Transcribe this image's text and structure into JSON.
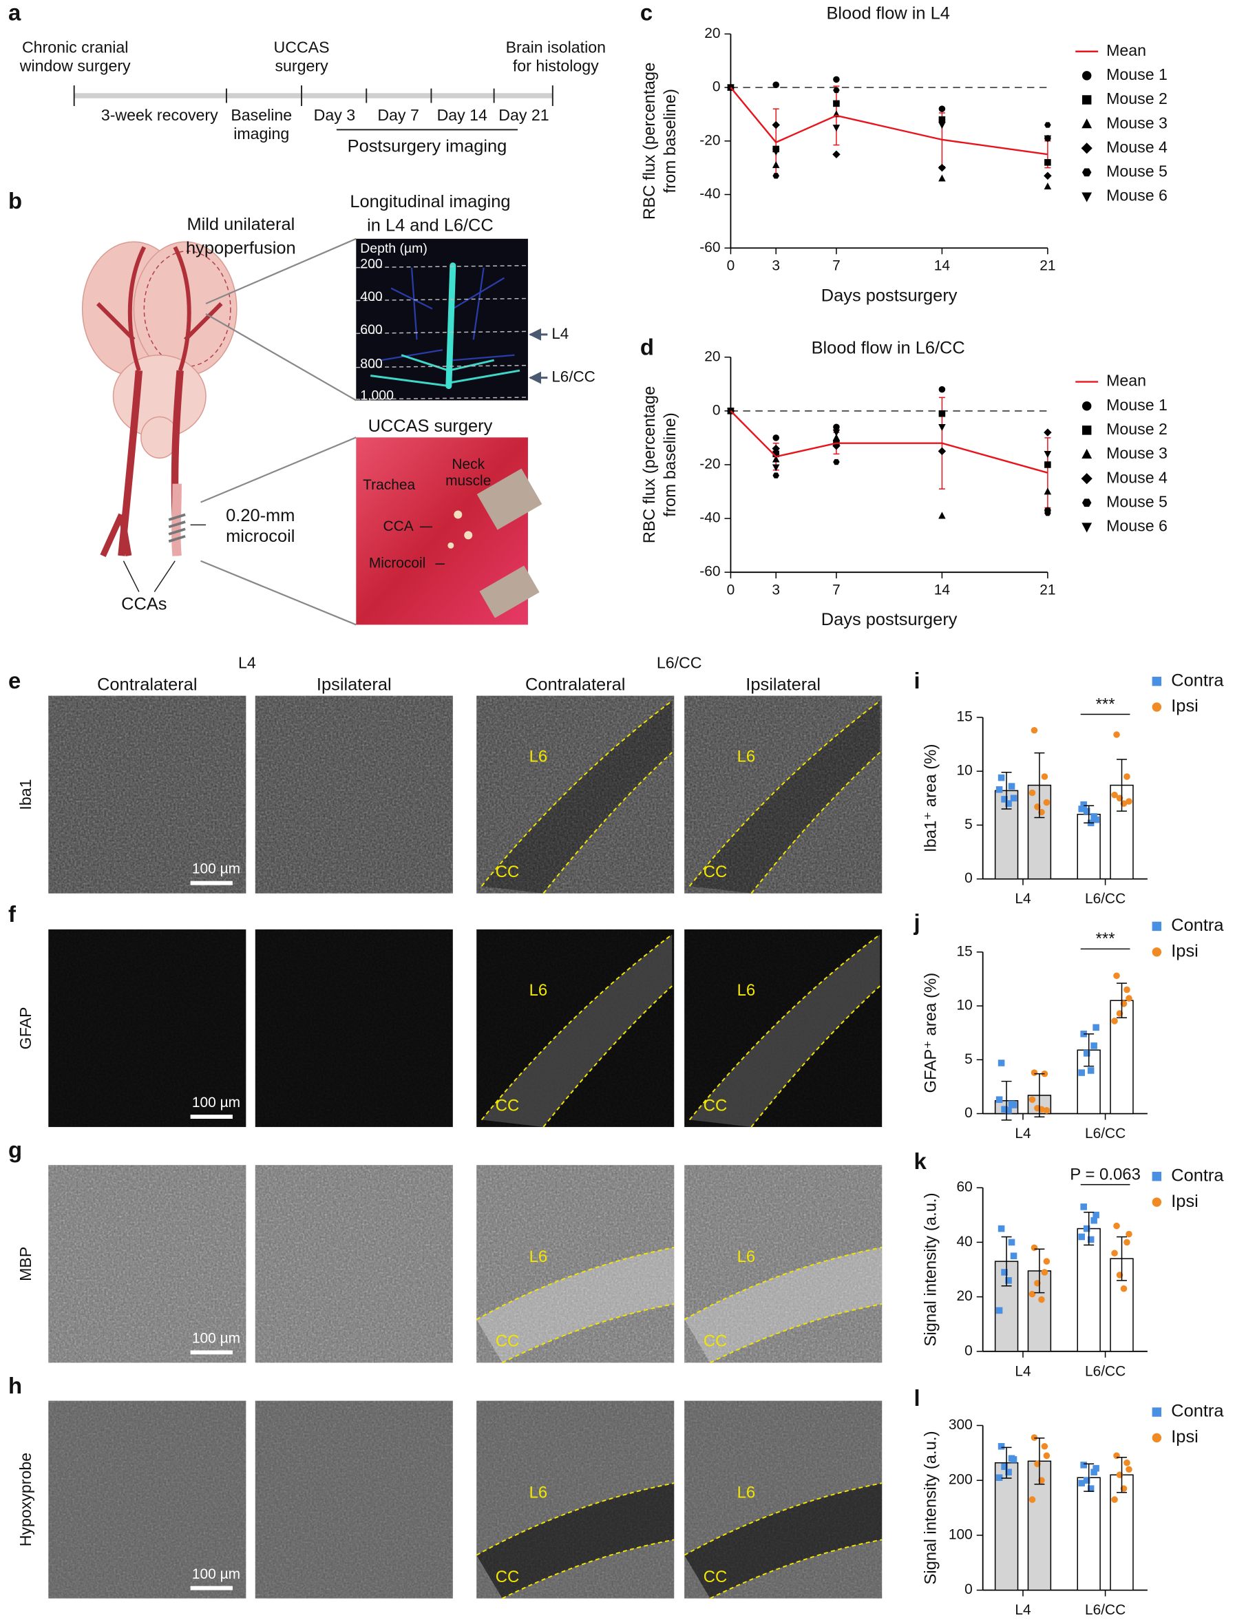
{
  "timeline": {
    "letter": "a",
    "events": [
      {
        "lines": [
          "Chronic cranial",
          "window surgery"
        ]
      },
      {
        "lines": [
          "UCCAS",
          "surgery"
        ]
      },
      {
        "lines": [
          "Brain isolation",
          "for histology"
        ]
      }
    ],
    "periods": [
      [
        "3-week recovery"
      ],
      [
        "Baseline",
        "imaging"
      ],
      [
        "Day 3"
      ],
      [
        "Day 7"
      ],
      [
        "Day 14"
      ],
      [
        "Day 21"
      ]
    ],
    "span": "Postsurgery imaging"
  },
  "model": {
    "letter": "b",
    "hypoperfusion": [
      "Mild unilateral",
      "hypoperfusion"
    ],
    "imaging_title": [
      "Longitudinal imaging",
      "in L4 and L6/CC"
    ],
    "depth_label": "Depth (µm)",
    "depths": [
      "200",
      "400",
      "600",
      "800",
      "1,000"
    ],
    "layers": [
      "L4",
      "L6/CC"
    ],
    "surgery_title": "UCCAS surgery",
    "photo_labels": [
      "Trachea",
      "Neck",
      "muscle",
      "CCA",
      "Microcoil"
    ],
    "microcoil": [
      "0.20-mm",
      "microcoil"
    ],
    "vessels": "CCAs"
  },
  "chart_data": [
    {
      "type": "line",
      "panel": "c",
      "title": "Blood flow in L4",
      "xlabel": "Days postsurgery",
      "ylabel": [
        "RBC flux (percentage",
        "from baseline)"
      ],
      "x": [
        0,
        3,
        7,
        14,
        21
      ],
      "xlim": [
        0,
        21
      ],
      "xticks": [
        0,
        3,
        7,
        14,
        21
      ],
      "ylim": [
        -60,
        20
      ],
      "yticks": [
        -60,
        -40,
        -20,
        0,
        20
      ],
      "hline": 0,
      "series": [
        {
          "name": "Mean",
          "color": "#e8141c",
          "values": [
            0,
            -20.5,
            -10.5,
            -19.5,
            -25
          ],
          "errors": [
            0,
            12.5,
            11,
            10,
            5
          ]
        },
        {
          "name": "Mouse 1",
          "color": "#000000",
          "marker": "circle",
          "values": [
            0,
            1,
            3,
            -8,
            -19
          ]
        },
        {
          "name": "Mouse 2",
          "color": "#000000",
          "marker": "square",
          "values": [
            0,
            -23,
            -6,
            -12,
            -28
          ]
        },
        {
          "name": "Mouse 3",
          "color": "#000000",
          "marker": "triangle",
          "values": [
            0,
            -29,
            -10,
            -34,
            -37
          ]
        },
        {
          "name": "Mouse 4",
          "color": "#000000",
          "marker": "diamond",
          "values": [
            0,
            -14,
            -25,
            -30,
            -33
          ]
        },
        {
          "name": "Mouse 5",
          "color": "#000000",
          "marker": "hexagon",
          "values": [
            0,
            -33,
            -1,
            -12,
            -14
          ]
        },
        {
          "name": "Mouse 6",
          "color": "#000000",
          "marker": "triangle-down",
          "values": [
            0,
            -24,
            -15,
            -14,
            -19
          ]
        }
      ]
    },
    {
      "type": "line",
      "panel": "d",
      "title": "Blood flow in L6/CC",
      "xlabel": "Days postsurgery",
      "ylabel": [
        "RBC flux (percentage",
        "from baseline)"
      ],
      "x": [
        0,
        3,
        7,
        14,
        21
      ],
      "xlim": [
        0,
        21
      ],
      "xticks": [
        0,
        3,
        7,
        14,
        21
      ],
      "ylim": [
        -60,
        20
      ],
      "yticks": [
        -60,
        -40,
        -20,
        0,
        20
      ],
      "hline": 0,
      "series": [
        {
          "name": "Mean",
          "color": "#e8141c",
          "values": [
            0,
            -17,
            -12,
            -12,
            -23
          ],
          "errors": [
            0,
            5,
            4,
            17,
            13
          ]
        },
        {
          "name": "Mouse 1",
          "color": "#000000",
          "marker": "circle",
          "values": [
            0,
            -10,
            -6,
            8,
            -37
          ]
        },
        {
          "name": "Mouse 2",
          "color": "#000000",
          "marker": "square",
          "values": [
            0,
            -16,
            -12,
            -1,
            -20
          ]
        },
        {
          "name": "Mouse 3",
          "color": "#000000",
          "marker": "triangle",
          "values": [
            0,
            -18,
            -10,
            -39,
            -30
          ]
        },
        {
          "name": "Mouse 4",
          "color": "#000000",
          "marker": "diamond",
          "values": [
            0,
            -14,
            -13,
            -15,
            -8
          ]
        },
        {
          "name": "Mouse 5",
          "color": "#000000",
          "marker": "hexagon",
          "values": [
            0,
            -24,
            -19,
            -1,
            -38
          ]
        },
        {
          "name": "Mouse 6",
          "color": "#000000",
          "marker": "triangle-down",
          "values": [
            0,
            -21,
            -8,
            -6,
            -16
          ]
        }
      ]
    },
    {
      "type": "bar",
      "panel": "i",
      "ylabel": "Iba1⁺ area (%)",
      "categories": [
        "L4",
        "L6/CC"
      ],
      "category_fills": [
        "#d4d4d4",
        "#ffffff"
      ],
      "ylim": [
        0,
        15
      ],
      "yticks": [
        0,
        5,
        10,
        15
      ],
      "annotation": "***",
      "series": [
        {
          "name": "Contra",
          "color": "#4a90e2",
          "marker": "square",
          "values": [
            8.2,
            6.0
          ],
          "errors": [
            1.7,
            0.8
          ],
          "points": [
            [
              9.4,
              8.6,
              7.4,
              7.0,
              8.3,
              7.5
            ],
            [
              6.9,
              5.8,
              6.3,
              5.2,
              6.5,
              5.5
            ]
          ]
        },
        {
          "name": "Ipsi",
          "color": "#f08a24",
          "marker": "circle",
          "values": [
            8.7,
            8.7
          ],
          "errors": [
            3.0,
            2.4
          ],
          "points": [
            [
              13.8,
              9.5,
              6.7,
              6.2,
              8.0,
              7.1
            ],
            [
              13.4,
              9.5,
              7.5,
              7.0,
              7.8,
              7.2
            ]
          ]
        }
      ]
    },
    {
      "type": "bar",
      "panel": "j",
      "ylabel": "GFAP⁺ area (%)",
      "categories": [
        "L4",
        "L6/CC"
      ],
      "category_fills": [
        "#d4d4d4",
        "#ffffff"
      ],
      "ylim": [
        0,
        15
      ],
      "yticks": [
        0,
        5,
        10,
        15
      ],
      "annotation": "***",
      "series": [
        {
          "name": "Contra",
          "color": "#4a90e2",
          "marker": "square",
          "values": [
            1.2,
            5.9
          ],
          "errors": [
            1.8,
            1.5
          ],
          "points": [
            [
              4.7,
              0.9,
              0.4,
              0.3,
              1.3,
              0.8
            ],
            [
              7.4,
              6.3,
              5.6,
              4.0,
              3.8,
              8.0
            ]
          ]
        },
        {
          "name": "Ipsi",
          "color": "#f08a24",
          "marker": "circle",
          "values": [
            1.7,
            10.5
          ],
          "errors": [
            2.0,
            1.6
          ],
          "points": [
            [
              3.8,
              3.7,
              0.5,
              0.4,
              1.3,
              0.3
            ],
            [
              12.8,
              11.5,
              9.3,
              10.2,
              8.6,
              10.7
            ]
          ]
        }
      ]
    },
    {
      "type": "bar",
      "panel": "k",
      "ylabel": "Signal intensity (a.u.)",
      "categories": [
        "L4",
        "L6/CC"
      ],
      "category_fills": [
        "#d4d4d4",
        "#ffffff"
      ],
      "ylim": [
        0,
        60
      ],
      "yticks": [
        0,
        20,
        40,
        60
      ],
      "annotation": "P = 0.063",
      "series": [
        {
          "name": "Contra",
          "color": "#4a90e2",
          "marker": "square",
          "values": [
            33,
            45
          ],
          "errors": [
            9,
            6
          ],
          "points": [
            [
              45,
              40,
              29,
              26,
              15,
              35
            ],
            [
              53,
              48,
              45,
              41,
              42,
              50
            ]
          ]
        },
        {
          "name": "Ipsi",
          "color": "#f08a24",
          "marker": "circle",
          "values": [
            29.5,
            34
          ],
          "errors": [
            8,
            8
          ],
          "points": [
            [
              38,
              29,
              25,
              19,
              21,
              33
            ],
            [
              46,
              40,
              28,
              23,
              36,
              43
            ]
          ]
        }
      ]
    },
    {
      "type": "bar",
      "panel": "l",
      "ylabel": "Signal intensity (a.u.)",
      "categories": [
        "L4",
        "L6/CC"
      ],
      "category_fills": [
        "#d4d4d4",
        "#ffffff"
      ],
      "ylim": [
        0,
        300
      ],
      "yticks": [
        0,
        100,
        200,
        300
      ],
      "series": [
        {
          "name": "Contra",
          "color": "#4a90e2",
          "marker": "square",
          "values": [
            232,
            205
          ],
          "errors": [
            28,
            25
          ],
          "points": [
            [
              262,
              240,
              225,
              215,
              205,
              238
            ],
            [
              228,
              215,
              200,
              185,
              195,
              222
            ]
          ]
        },
        {
          "name": "Ipsi",
          "color": "#f08a24",
          "marker": "circle",
          "values": [
            235,
            210
          ],
          "errors": [
            42,
            32
          ],
          "points": [
            [
              278,
              262,
              230,
              200,
              165,
              245
            ],
            [
              245,
              232,
              210,
              185,
              165,
              220
            ]
          ]
        }
      ]
    }
  ],
  "histology": {
    "letters": [
      "e",
      "f",
      "g",
      "h"
    ],
    "stains": [
      "Iba1",
      "GFAP",
      "MBP",
      "Hypoxyprobe"
    ],
    "regions": [
      "L4",
      "L6/CC"
    ],
    "sides": [
      "Contralateral",
      "Ipsilateral",
      "Contralateral",
      "Ipsilateral"
    ],
    "layer_labels": [
      "L6",
      "CC"
    ],
    "scale_bar": "100 µm"
  }
}
